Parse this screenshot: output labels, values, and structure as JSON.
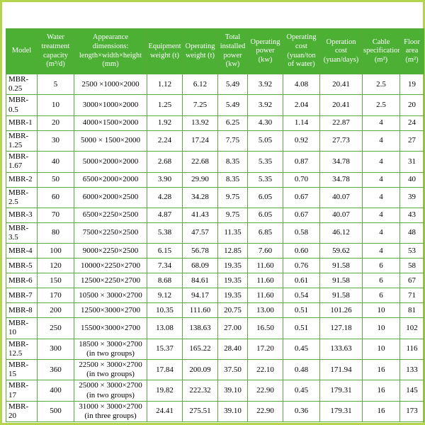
{
  "page": {
    "frame_color": "#b5d44d",
    "header_bg": "#4bb034",
    "grid_color": "#5aa93c",
    "text_color": "#000000"
  },
  "table": {
    "headers": [
      "Model",
      "Water treatment capacity (m³/d)",
      "Appearance dimensions: length×width×height (mm)",
      "Equipment weight (t)",
      "Operating weight (t)",
      "Total installed power (kw)",
      "Operating power (kw)",
      "Operating cost (yuan/ton of water)",
      "Operation cost (yuan/days)",
      "Cable specification (m²)",
      "Floor area (m²)"
    ],
    "rows": [
      [
        "MBR-0.25",
        "5",
        "2500 ×1000×2000",
        "1.12",
        "6.12",
        "5.49",
        "3.92",
        "4.08",
        "20.41",
        "2.5",
        "19"
      ],
      [
        "MBR-0.5",
        "10",
        "3000×1000×2000",
        "1.25",
        "7.25",
        "5.49",
        "3.92",
        "2.04",
        "20.41",
        "2.5",
        "20"
      ],
      [
        "MBR-1",
        "20",
        "4000×1500×2000",
        "1.92",
        "13.92",
        "6.25",
        "4.30",
        "1.14",
        "22.87",
        "4",
        "24"
      ],
      [
        "MBR-1.25",
        "30",
        "5000 × 1500×2000",
        "2.24",
        "17.24",
        "7.75",
        "5.05",
        "0.92",
        "27.73",
        "4",
        "27"
      ],
      [
        "MBR-1.67",
        "40",
        "5000×2000×2000",
        "2.68",
        "22.68",
        "8.35",
        "5.35",
        "0.87",
        "34.78",
        "4",
        "31"
      ],
      [
        "MBR-2",
        "50",
        "6500×2000×2000",
        "3.90",
        "29.90",
        "8.35",
        "5.35",
        "0.70",
        "34.78",
        "4",
        "40"
      ],
      [
        "MBR-2.5",
        "60",
        "6000×2000×2500",
        "4.28",
        "34.28",
        "9.75",
        "6.05",
        "0.67",
        "40.07",
        "4",
        "39"
      ],
      [
        "MBR-3",
        "70",
        "6500×2250×2500",
        "4.87",
        "41.43",
        "9.75",
        "6.05",
        "0.67",
        "40.07",
        "4",
        "43"
      ],
      [
        "MBR-3.5",
        "80",
        "7500×2250×2500",
        "5.38",
        "47.57",
        "11.35",
        "6.85",
        "0.58",
        "46.12",
        "4",
        "48"
      ],
      [
        "MBR-4",
        "100",
        "9000×2250×2500",
        "6.15",
        "56.78",
        "12.85",
        "7.60",
        "0.60",
        "59.62",
        "4",
        "53"
      ],
      [
        "MBR-5",
        "120",
        "10000×2250×2700",
        "7.34",
        "68.09",
        "19.35",
        "11.60",
        "0.76",
        "91.58",
        "6",
        "58"
      ],
      [
        "MBR-6",
        "150",
        "12500×2250×2700",
        "8.68",
        "84.61",
        "19.35",
        "11.60",
        "0.61",
        "91.58",
        "6",
        "67"
      ],
      [
        "MBR-7",
        "170",
        "10500 × 3000×2700",
        "9.12",
        "94.17",
        "19.35",
        "11.60",
        "0.54",
        "91.58",
        "6",
        "71"
      ],
      [
        "MBR-8",
        "200",
        "12500×3000×2700",
        "10.35",
        "111.60",
        "20.75",
        "13.00",
        "0.51",
        "101.26",
        "10",
        "81"
      ],
      [
        "MBR-10",
        "250",
        "15500×3000×2700",
        "13.08",
        "138.63",
        "27.00",
        "16.50",
        "0.51",
        "127.18",
        "10",
        "102"
      ],
      [
        "MBR-12.5",
        "300",
        "18500 × 3000×2700\n(in two groups)",
        "15.37",
        "165.22",
        "28.40",
        "17.20",
        "0.45",
        "133.63",
        "10",
        "116"
      ],
      [
        "MBR-15",
        "360",
        "22500 × 3000×2700\n(in two groups)",
        "17.84",
        "200.09",
        "37.50",
        "22.10",
        "0.48",
        "171.94",
        "16",
        "133"
      ],
      [
        "MBR-17",
        "400",
        "25000 × 3000×2700\n(in two groups)",
        "19.82",
        "222.32",
        "39.10",
        "22.90",
        "0.45",
        "179.31",
        "16",
        "145"
      ],
      [
        "MBR-20",
        "500",
        "31000 × 3000×2700\n(in three groups)",
        "24.41",
        "275.51",
        "39.10",
        "22.90",
        "0.36",
        "179.31",
        "16",
        "173"
      ]
    ]
  }
}
